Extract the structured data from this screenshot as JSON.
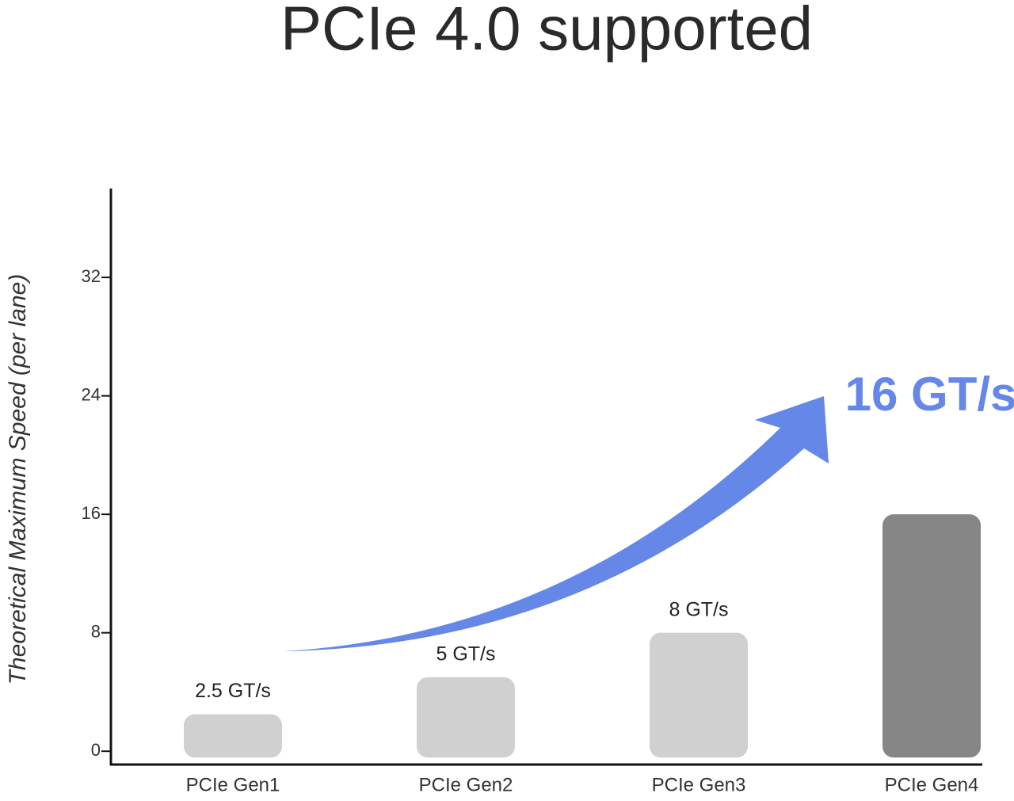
{
  "chart_data": {
    "type": "bar",
    "title": "PCIe 4.0 supported",
    "y_axis_label": "Theoretical Maximum Speed (per lane)",
    "categories": [
      "PCIe Gen1",
      "PCIe Gen2",
      "PCIe Gen3",
      "PCIe Gen4"
    ],
    "values": [
      2.5,
      5,
      8,
      16
    ],
    "value_labels": [
      "2.5 GT/s",
      "5 GT/s",
      "8 GT/s",
      "16 GT/s"
    ],
    "colors": [
      "#d0d0d0",
      "#d0d0d0",
      "#d0d0d0",
      "#868686"
    ],
    "ylim": [
      -0.9,
      38
    ],
    "yticks": [
      0,
      8,
      16,
      24,
      32
    ],
    "grid": false
  }
}
